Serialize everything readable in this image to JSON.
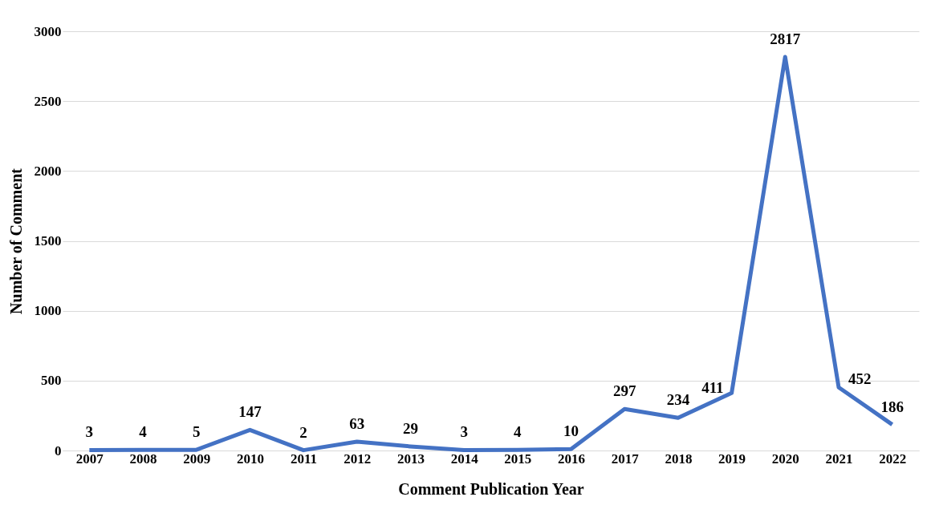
{
  "chart_data": {
    "type": "line",
    "xlabel": "Comment Publication Year",
    "ylabel": "Number of Comment",
    "categories": [
      "2007",
      "2008",
      "2009",
      "2010",
      "2011",
      "2012",
      "2013",
      "2014",
      "2015",
      "2016",
      "2017",
      "2018",
      "2019",
      "2020",
      "2021",
      "2022"
    ],
    "series": [
      {
        "color": "#4472c4",
        "values": [
          3,
          4,
          5,
          147,
          2,
          63,
          29,
          3,
          4,
          10,
          297,
          234,
          411,
          2817,
          452,
          186
        ]
      }
    ],
    "ylim": [
      0,
      3000
    ],
    "yticks": [
      0,
      500,
      1000,
      1500,
      2000,
      2500,
      3000
    ],
    "grid": "y",
    "data_labels": true,
    "marker": "none",
    "line_style": "solid"
  }
}
